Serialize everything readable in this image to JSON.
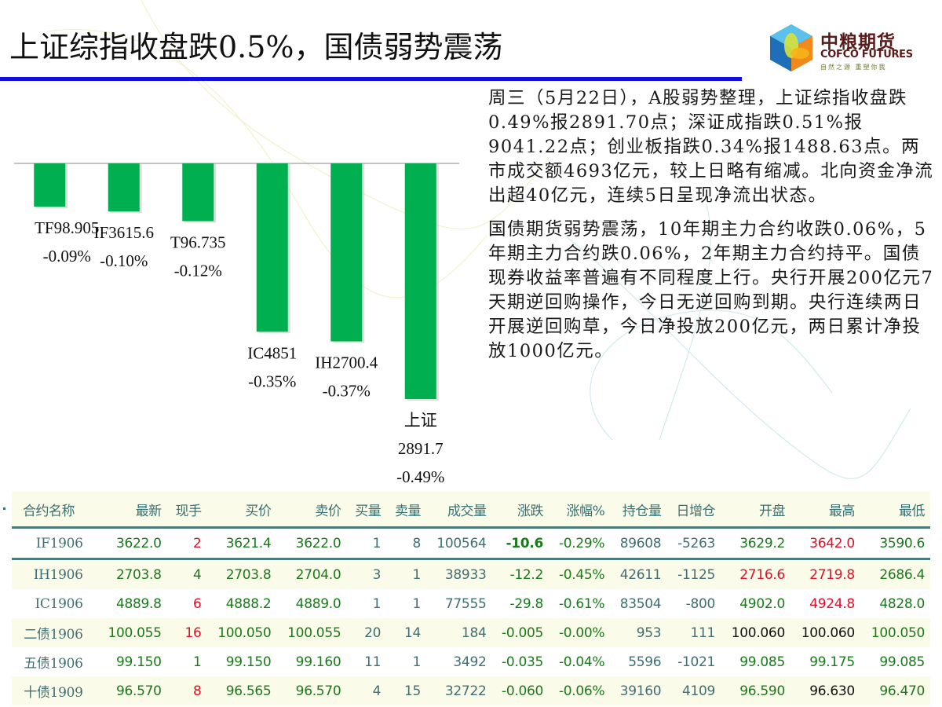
{
  "header": {
    "title": "上证综指收盘跌0.5%，国债弱势震荡",
    "rule_color": "#1010e0"
  },
  "logo": {
    "cn": "中粮期货",
    "en": "COFCO FUTURES",
    "slogan": "自然之源 重塑你我",
    "icon": "cube-logo-icon"
  },
  "chart_data": {
    "type": "bar",
    "title": "",
    "xlabel": "",
    "ylabel": "",
    "bar_color": "#00b050",
    "categories": [
      "TF98.905",
      "IF3615.6",
      "T96.735",
      "IC4851",
      "IH2700.4",
      "上证 2891.7"
    ],
    "category_lines": [
      [
        "TF98.905",
        "-0.09%"
      ],
      [
        "IF3615.6",
        "-0.10%"
      ],
      [
        "T96.735",
        "-0.12%"
      ],
      [
        "IC4851",
        "-0.35%"
      ],
      [
        "IH2700.4",
        "-0.37%"
      ],
      [
        "上证",
        "2891.7",
        "-0.49%"
      ]
    ],
    "values": [
      -0.09,
      -0.1,
      -0.12,
      -0.35,
      -0.37,
      -0.49
    ],
    "value_unit": "%",
    "ylim": [
      -0.49,
      0
    ],
    "grid": false,
    "legend": "none"
  },
  "commentary": {
    "paragraphs": [
      "周三（5月22日），A股弱势整理，上证综指收盘跌0.49%报2891.70点；深证成指跌0.51%报9041.22点；创业板指跌0.34%报1488.63点。两市成交额4693亿元，较上日略有缩减。北向资金净流出超40亿元，连续5日呈现净流出状态。",
      "国债期货弱势震荡，10年期主力合约收跌0.06%，5年期主力合约跌0.06%，2年期主力合约持平。国债现券收益率普遍有不同程度上行。央行开展200亿元7天期逆回购操作，今日无逆回购到期。央行连续两日开展逆回购草，今日净投放200亿元，两日累计净投放1000亿元。"
    ]
  },
  "quote_table": {
    "columns": [
      "合约名称",
      "最新",
      "现手",
      "买价",
      "卖价",
      "买量",
      "卖量",
      "成交量",
      "涨跌",
      "涨幅%",
      "持仓量",
      "日增仓",
      "开盘",
      "最高",
      "最低"
    ],
    "rows": [
      {
        "cells": [
          "IF1906",
          "3622.0",
          "2",
          "3621.4",
          "3622.0",
          "1",
          "8",
          "100564",
          "-10.6",
          "-0.29%",
          "89608",
          "-5263",
          "3629.2",
          "3642.0",
          "3590.6"
        ],
        "colors": [
          "teal",
          "green",
          "red",
          "green",
          "green",
          "teal",
          "teal",
          "teal",
          "green",
          "green",
          "teal",
          "teal",
          "green",
          "red",
          "green"
        ]
      },
      {
        "cells": [
          "IH1906",
          "2703.8",
          "4",
          "2703.8",
          "2704.0",
          "3",
          "1",
          "38933",
          "-12.2",
          "-0.45%",
          "42611",
          "-1125",
          "2716.6",
          "2719.8",
          "2686.4"
        ],
        "colors": [
          "teal",
          "green",
          "green",
          "green",
          "green",
          "teal",
          "teal",
          "teal",
          "green",
          "green",
          "teal",
          "teal",
          "red",
          "red",
          "green"
        ]
      },
      {
        "cells": [
          "IC1906",
          "4889.8",
          "6",
          "4888.2",
          "4889.0",
          "1",
          "1",
          "77555",
          "-29.8",
          "-0.61%",
          "83504",
          "-800",
          "4902.0",
          "4924.8",
          "4828.0"
        ],
        "colors": [
          "teal",
          "green",
          "red",
          "green",
          "green",
          "teal",
          "teal",
          "teal",
          "green",
          "green",
          "teal",
          "teal",
          "green",
          "red",
          "green"
        ]
      },
      {
        "cells": [
          "二债1906",
          "100.055",
          "16",
          "100.050",
          "100.055",
          "20",
          "14",
          "184",
          "-0.005",
          "-0.00%",
          "953",
          "111",
          "100.060",
          "100.060",
          "100.050"
        ],
        "colors": [
          "teal",
          "green",
          "red",
          "green",
          "green",
          "teal",
          "teal",
          "teal",
          "green",
          "green",
          "teal",
          "teal",
          "black",
          "black",
          "green"
        ]
      },
      {
        "cells": [
          "五债1906",
          "99.150",
          "1",
          "99.150",
          "99.160",
          "11",
          "1",
          "3492",
          "-0.035",
          "-0.04%",
          "5596",
          "-1021",
          "99.085",
          "99.175",
          "99.085"
        ],
        "colors": [
          "teal",
          "green",
          "green",
          "green",
          "green",
          "teal",
          "teal",
          "teal",
          "green",
          "green",
          "teal",
          "teal",
          "green",
          "green",
          "green"
        ]
      },
      {
        "cells": [
          "十债1909",
          "96.570",
          "8",
          "96.565",
          "96.570",
          "4",
          "15",
          "32722",
          "-0.060",
          "-0.06%",
          "39160",
          "4109",
          "96.590",
          "96.630",
          "96.470"
        ],
        "colors": [
          "teal",
          "green",
          "red",
          "green",
          "green",
          "teal",
          "teal",
          "teal",
          "green",
          "green",
          "teal",
          "teal",
          "green",
          "black",
          "green"
        ]
      }
    ],
    "colors": {
      "green": "#1a7a1a",
      "red": "#e0102a",
      "teal": "#3f6f73",
      "black": "#111111"
    }
  }
}
